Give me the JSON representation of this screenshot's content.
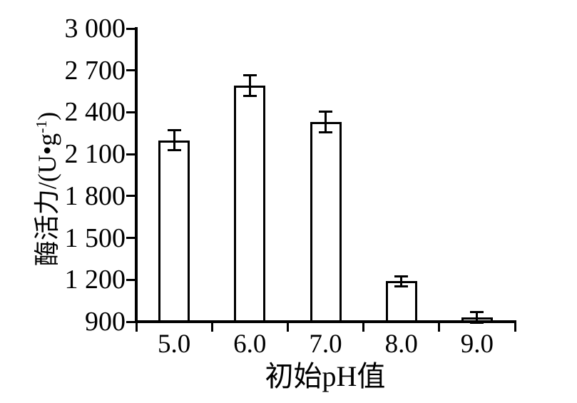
{
  "figure": {
    "background": "#ffffff",
    "ink": "#000000"
  },
  "chart_data": {
    "type": "bar",
    "title": "",
    "xlabel": "初始pH值",
    "ylabel": "酶活力/(U•g⁻¹)",
    "ylabel_parts": {
      "main": "酶活力/(U•g",
      "sup": "-1",
      "close": ")"
    },
    "categories": [
      "5.0",
      "6.0",
      "7.0",
      "8.0",
      "9.0"
    ],
    "values": [
      2200,
      2590,
      2330,
      1190,
      930
    ],
    "errors": [
      70,
      75,
      75,
      35,
      40
    ],
    "ylim": [
      900,
      3000
    ],
    "ytick_step": 300,
    "ytick_labels": [
      "900",
      "1 200",
      "1 500",
      "1 800",
      "2 100",
      "2 400",
      "2 700",
      "3 000"
    ],
    "grid": false,
    "legend": false,
    "bar_fill": "#ffffff",
    "bar_border": "#000000",
    "error_caps": true
  }
}
